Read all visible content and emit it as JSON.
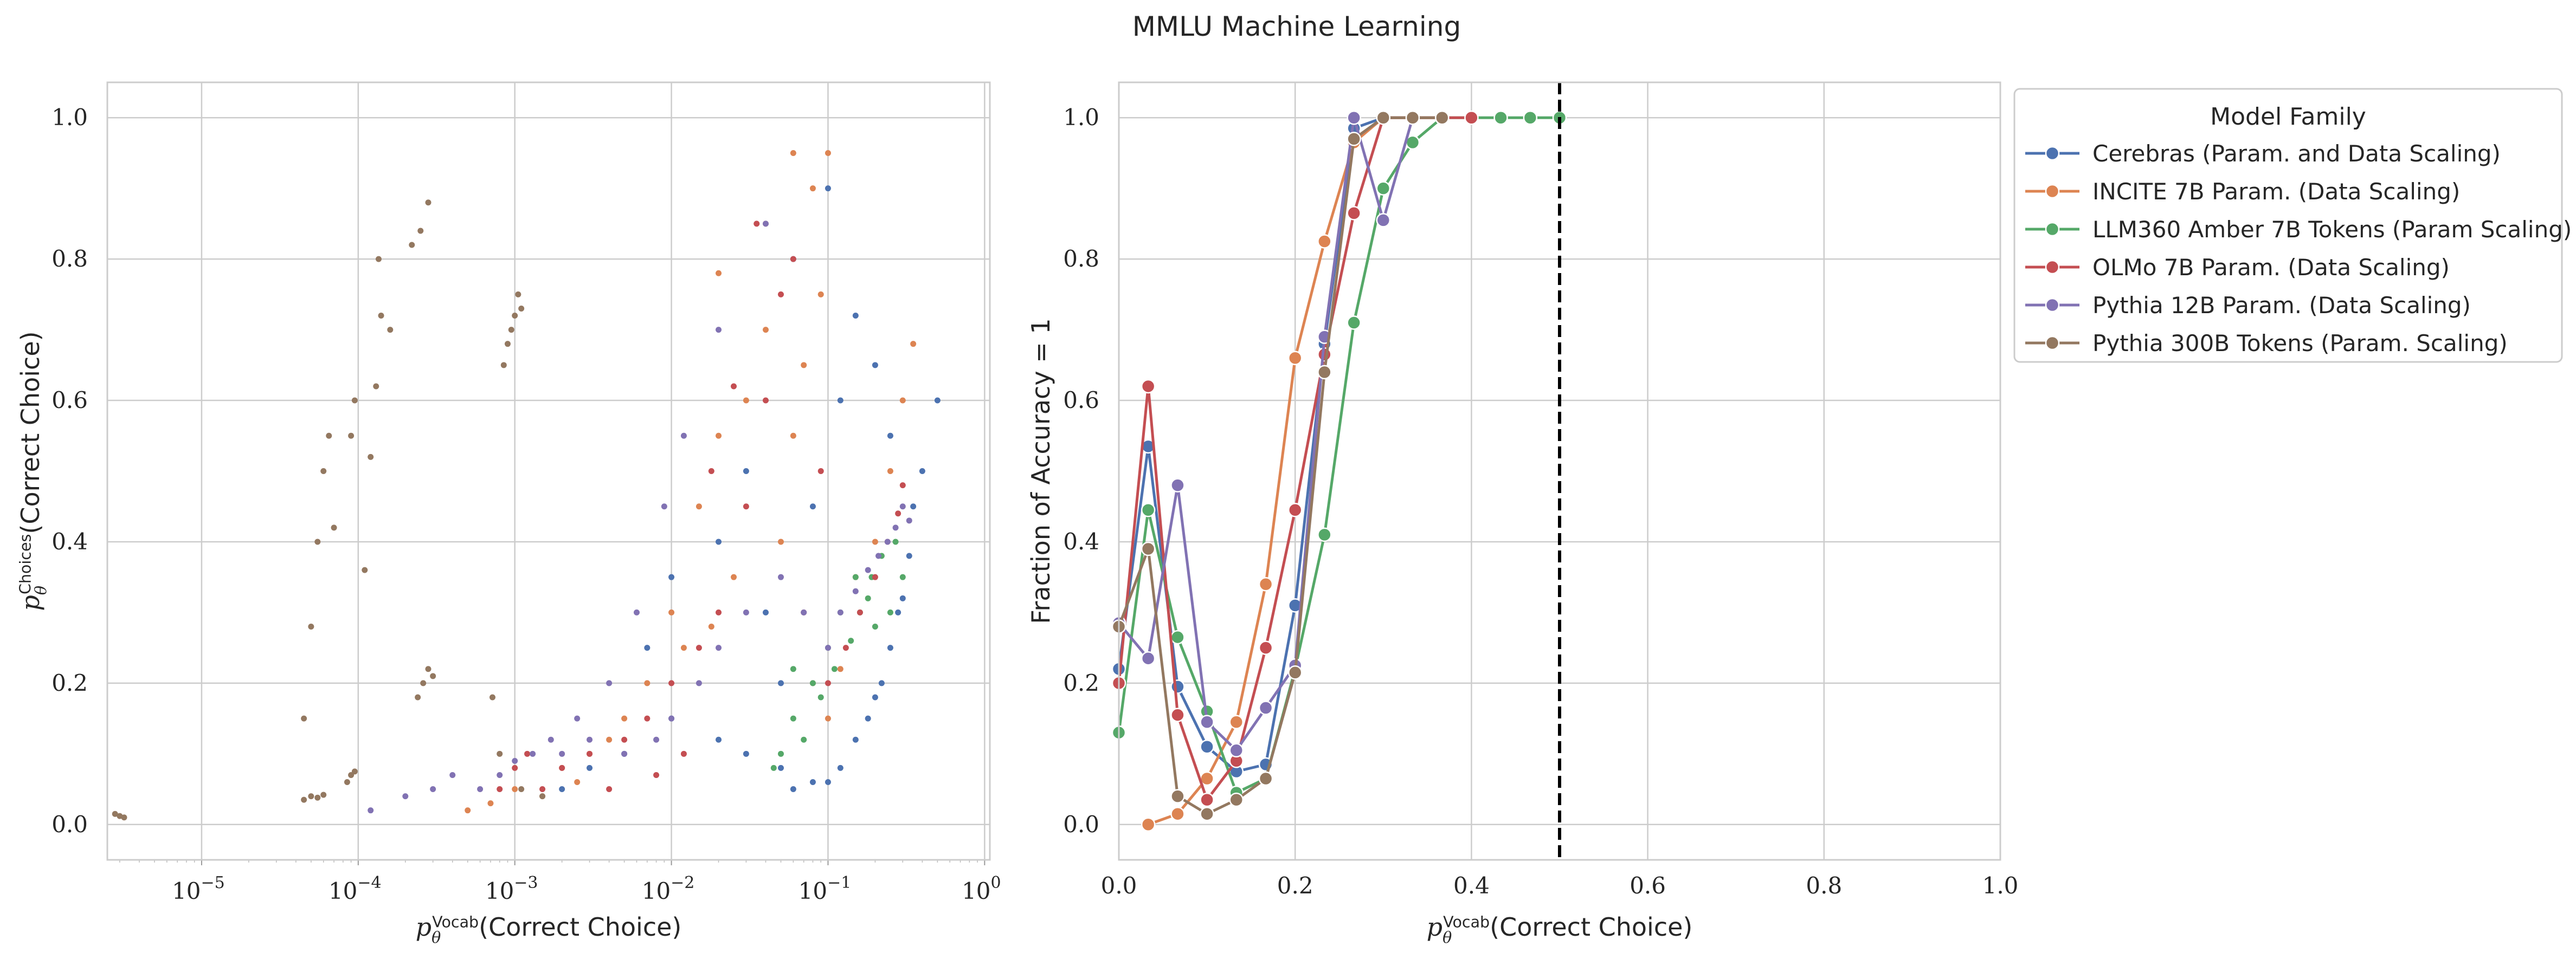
{
  "figure": {
    "title": "MMLU Machine Learning"
  },
  "legend": {
    "title": "Model Family"
  },
  "chart_data": [
    {
      "type": "scatter",
      "xlabel_main": "p",
      "xlabel_sub": "θ",
      "xlabel_sup": "Vocab",
      "xlabel_rest": "(Correct Choice)",
      "ylabel_main": "p",
      "ylabel_sub": "θ",
      "ylabel_sup": "Choices",
      "ylabel_rest": "(Correct Choice)",
      "xscale": "log",
      "xlim": [
        2.5e-06,
        1.08
      ],
      "ylim": [
        -0.05,
        1.05
      ],
      "xticks": [
        1e-05,
        0.0001,
        0.001,
        0.01,
        0.1,
        1
      ],
      "xtick_labels": [
        {
          "base": "10",
          "exp": "−5"
        },
        {
          "base": "10",
          "exp": "−4"
        },
        {
          "base": "10",
          "exp": "−3"
        },
        {
          "base": "10",
          "exp": "−2"
        },
        {
          "base": "10",
          "exp": "−1"
        },
        {
          "base": "10",
          "exp": "0"
        }
      ],
      "yticks": [
        0.0,
        0.2,
        0.4,
        0.6,
        0.8,
        1.0
      ],
      "ytick_labels": [
        "0.0",
        "0.2",
        "0.4",
        "0.6",
        "0.8",
        "1.0"
      ],
      "grid": true,
      "series": [
        {
          "color": "#4c72b0",
          "points": [
            [
              0.12,
              0.08
            ],
            [
              0.15,
              0.12
            ],
            [
              0.2,
              0.18
            ],
            [
              0.25,
              0.25
            ],
            [
              0.3,
              0.32
            ],
            [
              0.33,
              0.38
            ],
            [
              0.1,
              0.06
            ],
            [
              0.18,
              0.15
            ],
            [
              0.22,
              0.2
            ],
            [
              0.28,
              0.3
            ],
            [
              0.08,
              0.06
            ],
            [
              0.06,
              0.05
            ],
            [
              0.05,
              0.08
            ],
            [
              0.03,
              0.1
            ],
            [
              0.02,
              0.12
            ],
            [
              0.01,
              0.15
            ],
            [
              0.005,
              0.1
            ],
            [
              0.003,
              0.08
            ],
            [
              0.002,
              0.05
            ],
            [
              0.04,
              0.3
            ],
            [
              0.08,
              0.45
            ],
            [
              0.12,
              0.6
            ],
            [
              0.15,
              0.72
            ],
            [
              0.06,
              0.8
            ],
            [
              0.1,
              0.9
            ],
            [
              0.03,
              0.5
            ],
            [
              0.02,
              0.4
            ],
            [
              0.01,
              0.35
            ],
            [
              0.007,
              0.25
            ],
            [
              0.05,
              0.2
            ],
            [
              0.35,
              0.45
            ],
            [
              0.4,
              0.5
            ],
            [
              0.5,
              0.6
            ],
            [
              0.25,
              0.55
            ],
            [
              0.2,
              0.65
            ]
          ]
        },
        {
          "color": "#dd8452",
          "points": [
            [
              0.06,
              0.95
            ],
            [
              0.08,
              0.9
            ],
            [
              0.04,
              0.7
            ],
            [
              0.03,
              0.6
            ],
            [
              0.02,
              0.55
            ],
            [
              0.015,
              0.45
            ],
            [
              0.01,
              0.3
            ],
            [
              0.005,
              0.15
            ],
            [
              0.003,
              0.1
            ],
            [
              0.002,
              0.08
            ],
            [
              0.001,
              0.05
            ],
            [
              0.0007,
              0.03
            ],
            [
              0.0005,
              0.02
            ],
            [
              0.0015,
              0.04
            ],
            [
              0.0025,
              0.06
            ],
            [
              0.004,
              0.12
            ],
            [
              0.007,
              0.2
            ],
            [
              0.012,
              0.25
            ],
            [
              0.018,
              0.28
            ],
            [
              0.025,
              0.35
            ],
            [
              0.35,
              0.68
            ],
            [
              0.3,
              0.6
            ],
            [
              0.25,
              0.5
            ],
            [
              0.2,
              0.4
            ],
            [
              0.15,
              0.35
            ],
            [
              0.12,
              0.22
            ],
            [
              0.1,
              0.15
            ],
            [
              0.08,
              0.2
            ],
            [
              0.05,
              0.4
            ],
            [
              0.06,
              0.55
            ],
            [
              0.09,
              0.75
            ],
            [
              0.04,
              0.85
            ],
            [
              0.02,
              0.78
            ],
            [
              0.1,
              0.95
            ],
            [
              0.07,
              0.65
            ]
          ]
        },
        {
          "color": "#55a868",
          "points": [
            [
              0.05,
              0.1
            ],
            [
              0.06,
              0.15
            ],
            [
              0.08,
              0.2
            ],
            [
              0.1,
              0.25
            ],
            [
              0.12,
              0.3
            ],
            [
              0.15,
              0.35
            ],
            [
              0.18,
              0.32
            ],
            [
              0.2,
              0.28
            ],
            [
              0.25,
              0.3
            ],
            [
              0.3,
              0.35
            ],
            [
              0.07,
              0.12
            ],
            [
              0.09,
              0.18
            ],
            [
              0.11,
              0.22
            ],
            [
              0.14,
              0.26
            ],
            [
              0.16,
              0.3
            ],
            [
              0.19,
              0.35
            ],
            [
              0.22,
              0.38
            ],
            [
              0.27,
              0.4
            ],
            [
              0.045,
              0.08
            ],
            [
              0.06,
              0.22
            ]
          ]
        },
        {
          "color": "#c44e52",
          "points": [
            [
              0.0015,
              0.05
            ],
            [
              0.002,
              0.08
            ],
            [
              0.003,
              0.1
            ],
            [
              0.005,
              0.12
            ],
            [
              0.007,
              0.15
            ],
            [
              0.01,
              0.2
            ],
            [
              0.015,
              0.25
            ],
            [
              0.02,
              0.3
            ],
            [
              0.03,
              0.45
            ],
            [
              0.04,
              0.6
            ],
            [
              0.05,
              0.75
            ],
            [
              0.06,
              0.8
            ],
            [
              0.1,
              0.2
            ],
            [
              0.13,
              0.25
            ],
            [
              0.16,
              0.3
            ],
            [
              0.2,
              0.35
            ],
            [
              0.24,
              0.4
            ],
            [
              0.28,
              0.44
            ],
            [
              0.012,
              0.1
            ],
            [
              0.008,
              0.07
            ],
            [
              0.004,
              0.05
            ],
            [
              0.018,
              0.5
            ],
            [
              0.025,
              0.62
            ],
            [
              0.035,
              0.85
            ],
            [
              0.07,
              0.3
            ],
            [
              0.09,
              0.5
            ],
            [
              0.3,
              0.48
            ],
            [
              0.001,
              0.08
            ],
            [
              0.0008,
              0.05
            ],
            [
              0.0012,
              0.1
            ]
          ]
        },
        {
          "color": "#8172b3",
          "points": [
            [
              0.0006,
              0.05
            ],
            [
              0.0008,
              0.07
            ],
            [
              0.001,
              0.09
            ],
            [
              0.0013,
              0.1
            ],
            [
              0.002,
              0.1
            ],
            [
              0.003,
              0.12
            ],
            [
              0.005,
              0.1
            ],
            [
              0.008,
              0.12
            ],
            [
              0.01,
              0.15
            ],
            [
              0.015,
              0.2
            ],
            [
              0.02,
              0.25
            ],
            [
              0.03,
              0.3
            ],
            [
              0.05,
              0.35
            ],
            [
              0.07,
              0.3
            ],
            [
              0.1,
              0.25
            ],
            [
              0.12,
              0.3
            ],
            [
              0.15,
              0.33
            ],
            [
              0.18,
              0.36
            ],
            [
              0.21,
              0.38
            ],
            [
              0.24,
              0.4
            ],
            [
              0.27,
              0.42
            ],
            [
              0.3,
              0.45
            ],
            [
              0.33,
              0.43
            ],
            [
              0.004,
              0.2
            ],
            [
              0.006,
              0.3
            ],
            [
              0.009,
              0.45
            ],
            [
              0.012,
              0.55
            ],
            [
              0.02,
              0.7
            ],
            [
              0.04,
              0.85
            ],
            [
              0.0025,
              0.15
            ],
            [
              0.0017,
              0.12
            ],
            [
              0.0004,
              0.07
            ],
            [
              0.0003,
              0.05
            ],
            [
              0.0002,
              0.04
            ],
            [
              0.00012,
              0.02
            ]
          ]
        },
        {
          "color": "#937860",
          "points": [
            [
              2.8e-06,
              0.015
            ],
            [
              3e-06,
              0.012
            ],
            [
              3.2e-06,
              0.01
            ],
            [
              4.5e-05,
              0.035
            ],
            [
              5e-05,
              0.04
            ],
            [
              5.5e-05,
              0.038
            ],
            [
              6e-05,
              0.042
            ],
            [
              4.5e-05,
              0.15
            ],
            [
              5e-05,
              0.28
            ],
            [
              5.5e-05,
              0.4
            ],
            [
              6e-05,
              0.5
            ],
            [
              6.5e-05,
              0.55
            ],
            [
              7e-05,
              0.42
            ],
            [
              8.5e-05,
              0.06
            ],
            [
              9e-05,
              0.07
            ],
            [
              9.5e-05,
              0.075
            ],
            [
              9e-05,
              0.55
            ],
            [
              9.5e-05,
              0.6
            ],
            [
              0.00011,
              0.36
            ],
            [
              0.00012,
              0.52
            ],
            [
              0.00013,
              0.62
            ],
            [
              0.00014,
              0.72
            ],
            [
              0.000135,
              0.8
            ],
            [
              0.00016,
              0.7
            ],
            [
              0.00022,
              0.82
            ],
            [
              0.00025,
              0.84
            ],
            [
              0.00028,
              0.88
            ],
            [
              0.00024,
              0.18
            ],
            [
              0.00026,
              0.2
            ],
            [
              0.00028,
              0.22
            ],
            [
              0.0003,
              0.21
            ],
            [
              0.00085,
              0.65
            ],
            [
              0.0009,
              0.68
            ],
            [
              0.00095,
              0.7
            ],
            [
              0.001,
              0.72
            ],
            [
              0.00105,
              0.75
            ],
            [
              0.0011,
              0.73
            ],
            [
              0.00072,
              0.18
            ],
            [
              0.0008,
              0.1
            ],
            [
              0.0011,
              0.05
            ],
            [
              0.0015,
              0.04
            ]
          ]
        }
      ]
    },
    {
      "type": "line",
      "xlabel_main": "p",
      "xlabel_sub": "θ",
      "xlabel_sup": "Vocab",
      "xlabel_rest": "(Correct Choice)",
      "ylabel": "Fraction of Accuracy = 1",
      "xlim": [
        0,
        1
      ],
      "ylim": [
        -0.05,
        1.05
      ],
      "xticks": [
        0.0,
        0.2,
        0.4,
        0.6,
        0.8,
        1.0
      ],
      "xtick_labels": [
        "0.0",
        "0.2",
        "0.4",
        "0.6",
        "0.8",
        "1.0"
      ],
      "yticks": [
        0.0,
        0.2,
        0.4,
        0.6,
        0.8,
        1.0
      ],
      "ytick_labels": [
        "0.0",
        "0.2",
        "0.4",
        "0.6",
        "0.8",
        "1.0"
      ],
      "vline": 0.5,
      "grid": true,
      "legend_position": "outside right",
      "series": [
        {
          "name": "Cerebras (Param. and Data Scaling)",
          "color": "#4c72b0",
          "x": [
            0.0,
            0.0333,
            0.0667,
            0.1,
            0.1333,
            0.1667,
            0.2,
            0.2333,
            0.2667,
            0.3,
            0.3333,
            0.3667
          ],
          "y": [
            0.22,
            0.535,
            0.195,
            0.11,
            0.075,
            0.085,
            0.31,
            0.68,
            0.985,
            1.0,
            1.0,
            1.0
          ]
        },
        {
          "name": "INCITE 7B Param. (Data Scaling)",
          "color": "#dd8452",
          "x": [
            0.0333,
            0.0667,
            0.1,
            0.1333,
            0.1667,
            0.2,
            0.2333,
            0.2667,
            0.3,
            0.3333,
            0.3667
          ],
          "y": [
            0.0,
            0.015,
            0.065,
            0.145,
            0.34,
            0.66,
            0.825,
            0.965,
            1.0,
            1.0,
            1.0
          ]
        },
        {
          "name": "LLM360 Amber 7B Tokens (Param Scaling)",
          "color": "#55a868",
          "x": [
            0.0,
            0.0333,
            0.0667,
            0.1,
            0.1333,
            0.1667,
            0.2,
            0.2333,
            0.2667,
            0.3,
            0.3333,
            0.3667,
            0.4,
            0.4333,
            0.4667,
            0.5
          ],
          "y": [
            0.13,
            0.445,
            0.265,
            0.16,
            0.045,
            0.065,
            0.22,
            0.41,
            0.71,
            0.9,
            0.965,
            1.0,
            1.0,
            1.0,
            1.0,
            1.0
          ]
        },
        {
          "name": "OLMo 7B Param. (Data Scaling)",
          "color": "#c44e52",
          "x": [
            0.0,
            0.0333,
            0.0667,
            0.1,
            0.1333,
            0.1667,
            0.2,
            0.2333,
            0.2667,
            0.3,
            0.3333,
            0.3667,
            0.4
          ],
          "y": [
            0.2,
            0.62,
            0.155,
            0.035,
            0.09,
            0.25,
            0.445,
            0.665,
            0.865,
            1.0,
            1.0,
            1.0,
            1.0
          ]
        },
        {
          "name": "Pythia 12B Param. (Data Scaling)",
          "color": "#8172b3",
          "x": [
            0.0,
            0.0333,
            0.0667,
            0.1,
            0.1333,
            0.1667,
            0.2,
            0.2333,
            0.2667,
            0.3,
            0.3333
          ],
          "y": [
            0.285,
            0.235,
            0.48,
            0.145,
            0.105,
            0.165,
            0.225,
            0.69,
            1.0,
            0.855,
            1.0
          ]
        },
        {
          "name": "Pythia 300B Tokens (Param. Scaling)",
          "color": "#937860",
          "x": [
            0.0,
            0.0333,
            0.0667,
            0.1,
            0.1333,
            0.1667,
            0.2,
            0.2333,
            0.2667,
            0.3,
            0.3333,
            0.3667
          ],
          "y": [
            0.28,
            0.39,
            0.04,
            0.015,
            0.035,
            0.065,
            0.215,
            0.64,
            0.97,
            1.0,
            1.0,
            1.0
          ]
        }
      ]
    }
  ]
}
